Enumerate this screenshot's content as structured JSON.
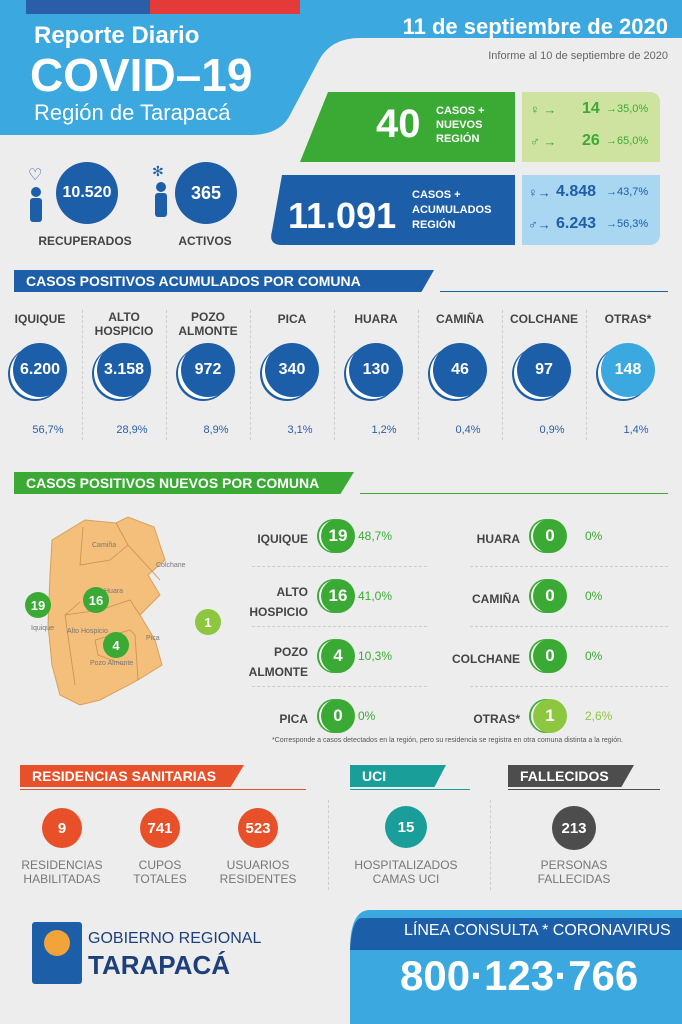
{
  "header": {
    "title_small": "Reporte Diario",
    "title_big": "COVID–19",
    "region": "Región de Tarapacá",
    "date": "11 de septiembre de 2020",
    "informe": "Informe al 10 de septiembre de 2020"
  },
  "colors": {
    "header_blue": "#3ba8e0",
    "dark_blue": "#1d5ea8",
    "green": "#3aaa35",
    "light_green": "#8dc63f",
    "residencias": "#e8502a",
    "uci": "#1a9e9a",
    "fallecidos": "#4d4d4d",
    "map": "#f3bf7a"
  },
  "summary": {
    "recuperados": {
      "value": "10.520",
      "label": "RECUPERADOS",
      "icon": "heart-person-icon"
    },
    "activos": {
      "value": "365",
      "label": "ACTIVOS",
      "icon": "virus-person-icon"
    }
  },
  "nuevos": {
    "value": "40",
    "label1": "CASOS +",
    "label2": "NUEVOS",
    "label3": "REGIÓN",
    "women": {
      "value": "14",
      "pct": "35,0%"
    },
    "men": {
      "value": "26",
      "pct": "65,0%"
    }
  },
  "acumulados": {
    "value": "11.091",
    "label1": "CASOS +",
    "label2": "ACUMULADOS",
    "label3": "REGIÓN",
    "women": {
      "value": "4.848",
      "pct": "43,7%"
    },
    "men": {
      "value": "6.243",
      "pct": "56,3%"
    }
  },
  "acum_section": {
    "title": "CASOS POSITIVOS ACUMULADOS POR COMUNA",
    "comunas": [
      {
        "name": "IQUIQUE",
        "value": "6.200",
        "pct": "56,7%"
      },
      {
        "name": "ALTO HOSPICIO",
        "value": "3.158",
        "pct": "28,9%"
      },
      {
        "name": "POZO ALMONTE",
        "value": "972",
        "pct": "8,9%"
      },
      {
        "name": "PICA",
        "value": "340",
        "pct": "3,1%"
      },
      {
        "name": "HUARA",
        "value": "130",
        "pct": "1,2%"
      },
      {
        "name": "CAMIÑA",
        "value": "46",
        "pct": "0,4%"
      },
      {
        "name": "COLCHANE",
        "value": "97",
        "pct": "0,9%"
      },
      {
        "name": "OTRAS*",
        "value": "148",
        "pct": "1,4%"
      }
    ]
  },
  "nuevos_section": {
    "title": "CASOS POSITIVOS NUEVOS POR COMUNA",
    "left": [
      {
        "name": "IQUIQUE",
        "value": "19",
        "pct": "48,7%"
      },
      {
        "name": "ALTO HOSPICIO",
        "value": "16",
        "pct": "41,0%"
      },
      {
        "name": "POZO ALMONTE",
        "value": "4",
        "pct": "10,3%"
      },
      {
        "name": "PICA",
        "value": "0",
        "pct": "0%"
      }
    ],
    "right": [
      {
        "name": "HUARA",
        "value": "0",
        "pct": "0%"
      },
      {
        "name": "CAMIÑA",
        "value": "0",
        "pct": "0%"
      },
      {
        "name": "COLCHANE",
        "value": "0",
        "pct": "0%"
      },
      {
        "name": "OTRAS*",
        "value": "1",
        "pct": "2,6%"
      }
    ],
    "footnote": "*Corresponde a casos detectados en la región, pero su residencia se registra en otra comuna distinta a la región.",
    "map": {
      "labels": {
        "camina": "Camiña",
        "colchane": "Colchane",
        "huara": "Huara",
        "iquique": "Iquique",
        "alto": "Alto Hospicio",
        "pica": "Pica",
        "pozo": "Pozo Almonte"
      },
      "pins": {
        "iquique": "19",
        "alto": "16",
        "pozo": "4",
        "otras": "1"
      }
    }
  },
  "residencias": {
    "title": "RESIDENCIAS SANITARIAS",
    "items": [
      {
        "value": "9",
        "label": "RESIDENCIAS HABILITADAS"
      },
      {
        "value": "741",
        "label": "CUPOS TOTALES"
      },
      {
        "value": "523",
        "label": "USUARIOS RESIDENTES"
      }
    ]
  },
  "uci": {
    "title": "UCI",
    "value": "15",
    "label": "HOSPITALIZADOS CAMAS UCI"
  },
  "fallecidos": {
    "title": "FALLECIDOS",
    "value": "213",
    "label": "PERSONAS FALLECIDAS"
  },
  "footer": {
    "gob": "GOBIERNO REGIONAL",
    "tarapaca": "TARAPACÁ",
    "linea": "LÍNEA CONSULTA * CORONAVIRUS",
    "phone": "800·123·766"
  }
}
